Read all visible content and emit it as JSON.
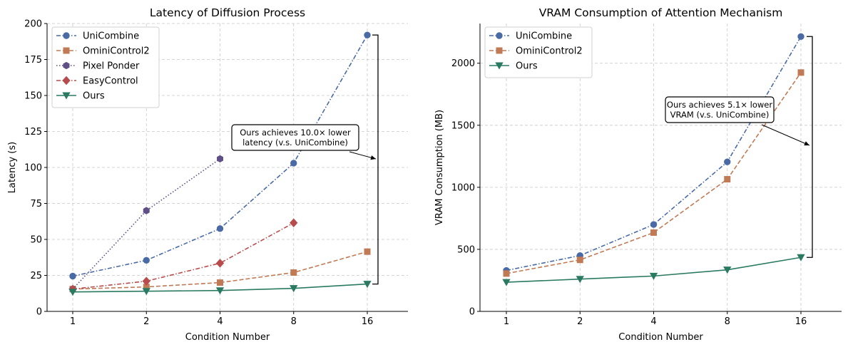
{
  "chart_data": [
    {
      "type": "line",
      "title": "Latency of Diffusion Process",
      "xlabel": "Condition Number",
      "ylabel": "Latency (s)",
      "categories": [
        "1",
        "2",
        "4",
        "8",
        "16"
      ],
      "ylim": [
        0,
        200
      ],
      "yticks": [
        0,
        25,
        50,
        75,
        100,
        125,
        150,
        175,
        200
      ],
      "grid": true,
      "legend_position": "top-left",
      "series": [
        {
          "name": "UniCombine",
          "values": [
            24.5,
            35.5,
            57.5,
            103,
            192
          ],
          "color": "#4a6aa5",
          "dash": "dashdot",
          "marker": "circle"
        },
        {
          "name": "OminiControl2",
          "values": [
            15.5,
            17,
            20,
            27,
            41.5
          ],
          "color": "#c07a55",
          "dash": "dashed",
          "marker": "square"
        },
        {
          "name": "Pixel Ponder",
          "values": [
            15.5,
            70,
            106,
            null,
            null
          ],
          "color": "#5f4f86",
          "dash": "dotted",
          "marker": "hexagon"
        },
        {
          "name": "EasyControl",
          "values": [
            15.5,
            21,
            33.5,
            61.5,
            null
          ],
          "color": "#b84c4c",
          "dash": "dashdot",
          "marker": "diamond"
        },
        {
          "name": "Ours",
          "values": [
            13.5,
            14,
            14.5,
            16,
            19
          ],
          "color": "#2a7a62",
          "dash": "solid",
          "marker": "triangle-down"
        }
      ],
      "annotation": {
        "lines": [
          "Ours achieves 10.0× lower",
          "latency (v.s. UniCombine)"
        ],
        "bracket_from": 19,
        "bracket_to": 192
      }
    },
    {
      "type": "line",
      "title": "VRAM Consumption of Attention Mechanism",
      "xlabel": "Condition Number",
      "ylabel": "VRAM Consumption (MB)",
      "categories": [
        "1",
        "2",
        "4",
        "8",
        "16"
      ],
      "ylim": [
        0,
        2320
      ],
      "yticks": [
        0,
        500,
        1000,
        1500,
        2000
      ],
      "grid": true,
      "legend_position": "top-left",
      "series": [
        {
          "name": "UniCombine",
          "values": [
            330,
            450,
            700,
            1205,
            2215
          ],
          "color": "#4a6aa5",
          "dash": "dashdot",
          "marker": "circle"
        },
        {
          "name": "OminiControl2",
          "values": [
            305,
            415,
            635,
            1065,
            1925
          ],
          "color": "#c07a55",
          "dash": "dashed",
          "marker": "square"
        },
        {
          "name": "Ours",
          "values": [
            235,
            260,
            285,
            335,
            435
          ],
          "color": "#2a7a62",
          "dash": "solid",
          "marker": "triangle-down"
        }
      ],
      "annotation": {
        "lines": [
          "Ours achieves 5.1× lower",
          "VRAM (v.s. UniCombine)"
        ],
        "bracket_from": 435,
        "bracket_to": 2215
      }
    }
  ]
}
